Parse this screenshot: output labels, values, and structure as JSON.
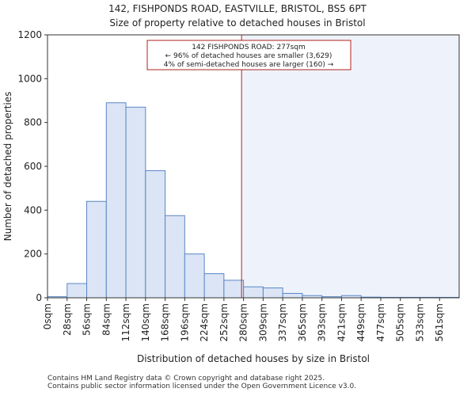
{
  "chart_data": {
    "type": "bar",
    "title": "142, FISHPONDS ROAD, EASTVILLE, BRISTOL, BS5 6PT",
    "subtitle": "Size of property relative to detached houses in Bristol",
    "xlabel": "Distribution of detached houses by size in Bristol",
    "ylabel": "Number of detached properties",
    "ylim": [
      0,
      1200
    ],
    "yticks": [
      0,
      200,
      400,
      600,
      800,
      1000,
      1200
    ],
    "categories": [
      "0sqm",
      "28sqm",
      "56sqm",
      "84sqm",
      "112sqm",
      "140sqm",
      "168sqm",
      "196sqm",
      "224sqm",
      "252sqm",
      "280sqm",
      "309sqm",
      "337sqm",
      "365sqm",
      "393sqm",
      "421sqm",
      "449sqm",
      "477sqm",
      "505sqm",
      "533sqm",
      "561sqm"
    ],
    "values": [
      5,
      65,
      440,
      890,
      870,
      580,
      375,
      200,
      110,
      80,
      50,
      45,
      20,
      10,
      5,
      10,
      3,
      2,
      2,
      2,
      2
    ],
    "marker": {
      "value_label": "277sqm",
      "position_bin": 9.9,
      "annotation": [
        "142 FISHPONDS ROAD: 277sqm",
        "← 96% of detached houses are smaller (3,629)",
        "4% of semi-detached houses are larger (160) →"
      ]
    },
    "colors": {
      "bar_fill": "#dbe5f5",
      "bar_stroke": "#5a86c5",
      "marker": "#b22222",
      "highlight": "#eef3fb"
    }
  },
  "footer": {
    "line1": "Contains HM Land Registry data © Crown copyright and database right 2025.",
    "line2": "Contains public sector information licensed under the Open Government Licence v3.0."
  }
}
